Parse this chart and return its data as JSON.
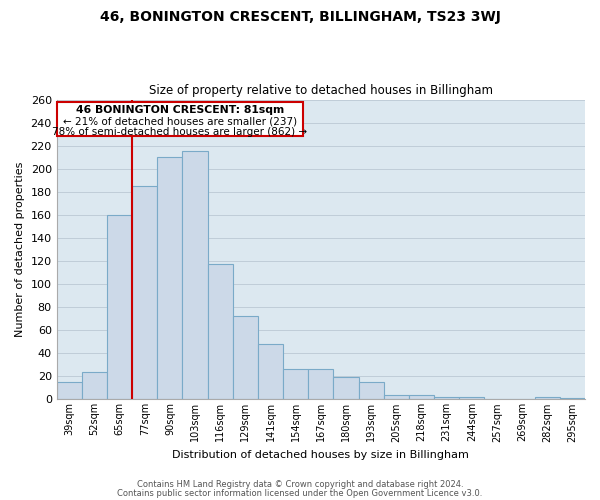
{
  "title": "46, BONINGTON CRESCENT, BILLINGHAM, TS23 3WJ",
  "subtitle": "Size of property relative to detached houses in Billingham",
  "xlabel": "Distribution of detached houses by size in Billingham",
  "ylabel": "Number of detached properties",
  "bar_color": "#ccd9e8",
  "bar_edge_color": "#7aaac8",
  "categories": [
    "39sqm",
    "52sqm",
    "65sqm",
    "77sqm",
    "90sqm",
    "103sqm",
    "116sqm",
    "129sqm",
    "141sqm",
    "154sqm",
    "167sqm",
    "180sqm",
    "193sqm",
    "205sqm",
    "218sqm",
    "231sqm",
    "244sqm",
    "257sqm",
    "269sqm",
    "282sqm",
    "295sqm"
  ],
  "values": [
    15,
    24,
    160,
    185,
    210,
    215,
    117,
    72,
    48,
    26,
    26,
    19,
    15,
    4,
    4,
    2,
    2,
    0,
    0,
    2,
    1
  ],
  "ylim": [
    0,
    260
  ],
  "yticks": [
    0,
    20,
    40,
    60,
    80,
    100,
    120,
    140,
    160,
    180,
    200,
    220,
    240,
    260
  ],
  "vline_color": "#cc0000",
  "vline_index": 3,
  "annotation_title": "46 BONINGTON CRESCENT: 81sqm",
  "annotation_line1": "← 21% of detached houses are smaller (237)",
  "annotation_line2": "78% of semi-detached houses are larger (862) →",
  "annotation_box_color": "#ffffff",
  "annotation_box_edge": "#cc0000",
  "footer1": "Contains HM Land Registry data © Crown copyright and database right 2024.",
  "footer2": "Contains public sector information licensed under the Open Government Licence v3.0.",
  "bg_color": "#dce8f0",
  "grid_color": "#c0cdd8"
}
